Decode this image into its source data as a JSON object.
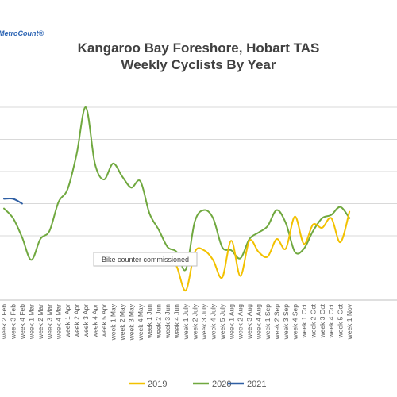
{
  "logo": "MetroCount®",
  "chart_data": {
    "type": "line",
    "title": [
      "Kangaroo Bay Foreshore, Hobart TAS",
      "Weekly Cyclists By Year"
    ],
    "categories": [
      "week 2 Feb",
      "week 3 Feb",
      "week 4 Feb",
      "week 1 Mar",
      "week 2 Mar",
      "week 3 Mar",
      "week 4 Mar",
      "week 1 Apr",
      "week 2 Apr",
      "week 3 Apr",
      "week 4 Apr",
      "week 5 Apr",
      "week 1 May",
      "week 2 May",
      "week 3 May",
      "week 4 May",
      "week 1 Jun",
      "week 2 Jun",
      "week 3 Jun",
      "week 4 Jun",
      "week 1 July",
      "week 2 July",
      "week 3 July",
      "week 4 July",
      "week 5 July",
      "week 1 Aug",
      "week 2 Aug",
      "week 3 Aug",
      "week 4 Aug",
      "week 1 Sep",
      "week 2 Sep",
      "week 3 Sep",
      "week 4 Sep",
      "week 1 Oct",
      "week 2 Oct",
      "week 3 Oct",
      "week 4 Oct",
      "week 5 Oct",
      "week 1 Nov"
    ],
    "series": [
      {
        "name": "2019",
        "color": "#f2c100",
        "values": [
          null,
          null,
          null,
          null,
          null,
          null,
          null,
          null,
          null,
          null,
          null,
          null,
          null,
          null,
          null,
          null,
          1.25,
          1.15,
          1.45,
          1.05,
          0.3,
          1.5,
          1.55,
          1.25,
          0.7,
          1.85,
          0.75,
          1.85,
          1.5,
          1.35,
          1.9,
          1.6,
          2.6,
          1.75,
          2.35,
          2.25,
          2.55,
          1.8,
          2.75
        ]
      },
      {
        "name": "2020",
        "color": "#70a83f",
        "values": [
          2.85,
          2.55,
          1.95,
          1.25,
          1.9,
          2.15,
          3.05,
          3.45,
          4.55,
          6.0,
          4.25,
          3.75,
          4.25,
          3.85,
          3.5,
          3.7,
          2.7,
          2.2,
          1.65,
          1.5,
          0.95,
          2.45,
          2.8,
          2.55,
          1.65,
          1.55,
          1.3,
          1.9,
          2.1,
          2.3,
          2.8,
          2.4,
          1.5,
          1.6,
          2.15,
          2.55,
          2.65,
          2.9,
          2.55
        ]
      },
      {
        "name": "2021",
        "color": "#2f5fa4",
        "values": [
          3.15,
          3.15,
          3.0,
          null,
          null,
          null,
          null,
          null,
          null,
          null,
          null,
          null,
          null,
          null,
          null,
          null,
          null,
          null,
          null,
          null,
          null,
          null,
          null,
          null,
          null,
          null,
          null,
          null,
          null,
          null,
          null,
          null,
          null,
          null,
          null,
          null,
          null,
          null,
          null
        ]
      }
    ],
    "ylim": [
      0,
      7
    ],
    "grid": true,
    "legend": "bottom",
    "annotation": "Bike counter commissioned"
  }
}
